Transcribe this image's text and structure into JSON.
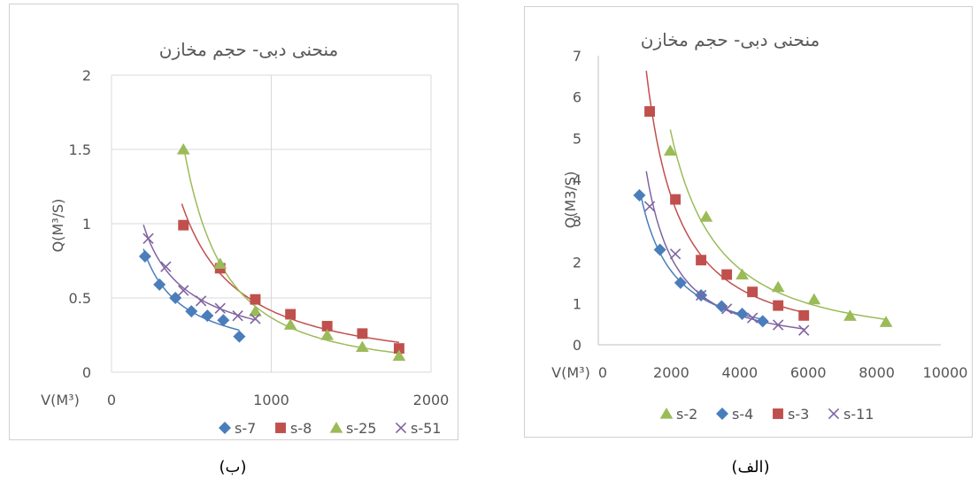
{
  "captions": {
    "left": "(ب)",
    "right": "(الف)"
  },
  "chart_data": [
    {
      "type": "scatter",
      "title": "منحنی دبی- حجم مخازن",
      "xlabel": "V(M³)",
      "ylabel": "Q(M³/S)",
      "xlim": [
        0,
        2000
      ],
      "ylim": [
        0,
        2
      ],
      "xticks": [
        0,
        1000,
        2000
      ],
      "yticks": [
        0,
        0.5,
        1,
        1.5,
        2
      ],
      "grid": true,
      "legend": "bottom",
      "series": [
        {
          "name": "s-7",
          "marker": "diamond",
          "color": "#4a7ebb",
          "points": [
            [
              210,
              0.78
            ],
            [
              300,
              0.59
            ],
            [
              400,
              0.5
            ],
            [
              500,
              0.41
            ],
            [
              600,
              0.38
            ],
            [
              700,
              0.35
            ],
            [
              800,
              0.24
            ]
          ]
        },
        {
          "name": "s-8",
          "marker": "square",
          "color": "#c0504d",
          "points": [
            [
              450,
              0.99
            ],
            [
              680,
              0.7
            ],
            [
              900,
              0.49
            ],
            [
              1120,
              0.39
            ],
            [
              1350,
              0.31
            ],
            [
              1570,
              0.26
            ],
            [
              1800,
              0.16
            ]
          ]
        },
        {
          "name": "s-25",
          "marker": "triangle",
          "color": "#9bbb59",
          "points": [
            [
              450,
              1.5
            ],
            [
              680,
              0.73
            ],
            [
              900,
              0.41
            ],
            [
              1120,
              0.32
            ],
            [
              1350,
              0.25
            ],
            [
              1570,
              0.17
            ],
            [
              1800,
              0.11
            ]
          ]
        },
        {
          "name": "s-51",
          "marker": "x",
          "color": "#8064a2",
          "points": [
            [
              230,
              0.9
            ],
            [
              340,
              0.71
            ],
            [
              450,
              0.55
            ],
            [
              560,
              0.48
            ],
            [
              680,
              0.43
            ],
            [
              790,
              0.38
            ],
            [
              900,
              0.36
            ]
          ]
        }
      ],
      "trendlines": [
        {
          "series": "s-7",
          "from": 200,
          "to": 800
        },
        {
          "series": "s-8",
          "from": 440,
          "to": 1800
        },
        {
          "series": "s-25",
          "from": 450,
          "to": 1800
        },
        {
          "series": "s-51",
          "from": 200,
          "to": 900
        }
      ]
    },
    {
      "type": "scatter",
      "title": "منحنی دبی- حجم مخازن",
      "xlabel": "V(M³)",
      "ylabel": "Q(M3/S)",
      "xlim": [
        0,
        10000
      ],
      "ylim": [
        0,
        7
      ],
      "xticks": [
        0,
        2000,
        4000,
        6000,
        8000,
        10000
      ],
      "yticks": [
        0,
        1,
        2,
        3,
        4,
        5,
        6,
        7
      ],
      "grid": false,
      "legend": "bottom",
      "series": [
        {
          "name": "s-2",
          "marker": "triangle",
          "color": "#9bbb59",
          "points": [
            [
              2100,
              4.7
            ],
            [
              3150,
              3.1
            ],
            [
              4200,
              1.7
            ],
            [
              5250,
              1.4
            ],
            [
              6300,
              1.1
            ],
            [
              7350,
              0.7
            ],
            [
              8400,
              0.55
            ]
          ]
        },
        {
          "name": "s-4",
          "marker": "diamond",
          "color": "#4a7ebb",
          "points": [
            [
              1200,
              3.62
            ],
            [
              1800,
              2.3
            ],
            [
              2400,
              1.5
            ],
            [
              3000,
              1.2
            ],
            [
              3600,
              0.93
            ],
            [
              4200,
              0.75
            ],
            [
              4800,
              0.57
            ]
          ]
        },
        {
          "name": "s-3",
          "marker": "square",
          "color": "#c0504d",
          "points": [
            [
              1500,
              5.65
            ],
            [
              2250,
              3.52
            ],
            [
              3000,
              2.05
            ],
            [
              3750,
              1.7
            ],
            [
              4500,
              1.28
            ],
            [
              5250,
              0.95
            ],
            [
              6000,
              0.71
            ]
          ]
        },
        {
          "name": "s-11",
          "marker": "x",
          "color": "#8064a2",
          "points": [
            [
              1500,
              3.35
            ],
            [
              2250,
              2.2
            ],
            [
              3000,
              1.2
            ],
            [
              3750,
              0.87
            ],
            [
              4500,
              0.65
            ],
            [
              5250,
              0.48
            ],
            [
              6000,
              0.35
            ]
          ]
        }
      ],
      "trendlines": [
        {
          "series": "s-2",
          "from": 2100,
          "to": 8400
        },
        {
          "series": "s-4",
          "from": 1250,
          "to": 4800
        },
        {
          "series": "s-3",
          "from": 1400,
          "to": 6000
        },
        {
          "series": "s-11",
          "from": 1400,
          "to": 6000
        }
      ]
    }
  ]
}
